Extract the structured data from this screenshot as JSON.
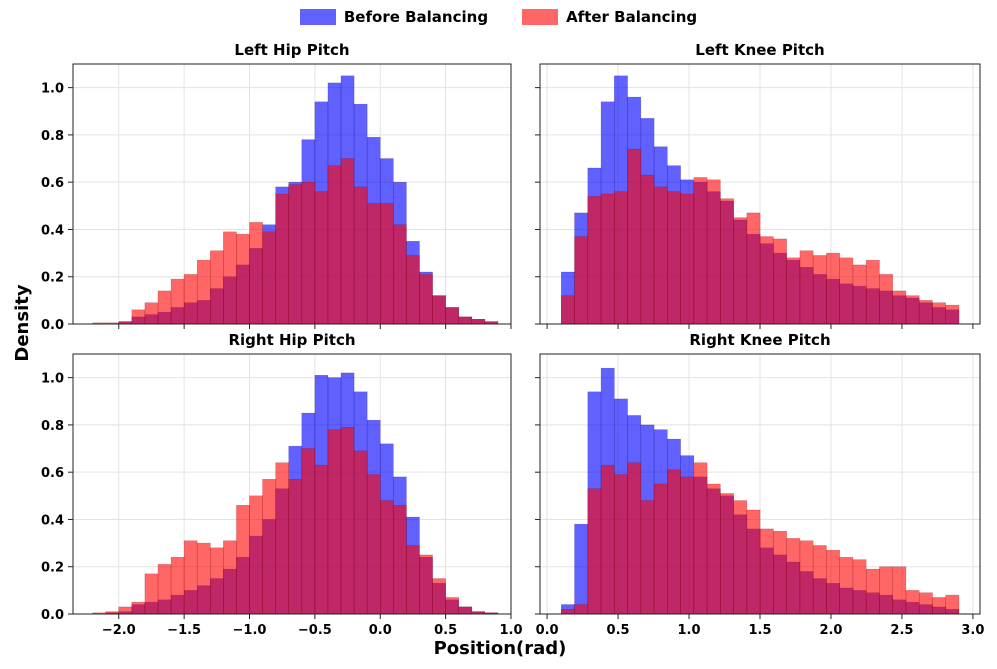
{
  "legend": {
    "before": "Before Balancing",
    "after": "After Balancing"
  },
  "figure": {
    "ylabel": "Density",
    "xlabel": "Position(rad)"
  },
  "colors": {
    "before": "#0000ff",
    "after": "#ff0000",
    "overlap": "#b00046"
  },
  "chart_data": [
    {
      "type": "bar",
      "title": "Left Hip Pitch",
      "xlim": [
        -2.35,
        1.0
      ],
      "ylim": [
        0,
        1.1
      ],
      "xticks": [
        -2.0,
        -1.5,
        -1.0,
        -0.5,
        0.0,
        0.5,
        1.0
      ],
      "yticks": [
        0.0,
        0.2,
        0.4,
        0.6,
        0.8,
        1.0
      ],
      "xtick_labels": [],
      "ytick_labels": [
        "0.0",
        "0.2",
        "0.4",
        "0.6",
        "0.8",
        "1.0"
      ],
      "bin_start": -2.2,
      "bin_width": 0.1,
      "series": [
        {
          "name": "Before Balancing",
          "values": [
            0,
            0,
            0.01,
            0.03,
            0.04,
            0.05,
            0.07,
            0.09,
            0.1,
            0.15,
            0.2,
            0.25,
            0.32,
            0.42,
            0.58,
            0.6,
            0.78,
            0.94,
            1.02,
            1.05,
            0.93,
            0.79,
            0.7,
            0.6,
            0.35,
            0.22,
            0.12,
            0.07,
            0.03,
            0.02,
            0.01
          ]
        },
        {
          "name": "After Balancing",
          "values": [
            0.005,
            0.005,
            0.01,
            0.06,
            0.09,
            0.14,
            0.19,
            0.21,
            0.27,
            0.31,
            0.39,
            0.38,
            0.43,
            0.39,
            0.55,
            0.59,
            0.6,
            0.56,
            0.67,
            0.7,
            0.58,
            0.51,
            0.51,
            0.42,
            0.29,
            0.21,
            0.12,
            0.07,
            0.03,
            0.02,
            0.01
          ]
        }
      ]
    },
    {
      "type": "bar",
      "title": "Left Knee Pitch",
      "xlim": [
        -0.05,
        3.05
      ],
      "ylim": [
        0,
        1.1
      ],
      "xticks": [
        0.0,
        0.5,
        1.0,
        1.5,
        2.0,
        2.5,
        3.0
      ],
      "yticks": [
        0.0,
        0.2,
        0.4,
        0.6,
        0.8,
        1.0
      ],
      "xtick_labels": [],
      "ytick_labels": [],
      "bin_start": 0.1,
      "bin_width": 0.0934,
      "series": [
        {
          "name": "Before Balancing",
          "values": [
            0.22,
            0.47,
            0.66,
            0.94,
            1.05,
            0.96,
            0.87,
            0.75,
            0.67,
            0.61,
            0.6,
            0.56,
            0.52,
            0.44,
            0.38,
            0.34,
            0.3,
            0.27,
            0.24,
            0.21,
            0.19,
            0.17,
            0.16,
            0.15,
            0.14,
            0.12,
            0.11,
            0.09,
            0.07,
            0.06
          ]
        },
        {
          "name": "After Balancing",
          "values": [
            0.12,
            0.37,
            0.54,
            0.55,
            0.56,
            0.74,
            0.63,
            0.58,
            0.56,
            0.55,
            0.62,
            0.61,
            0.53,
            0.45,
            0.47,
            0.37,
            0.36,
            0.28,
            0.31,
            0.29,
            0.3,
            0.28,
            0.25,
            0.27,
            0.21,
            0.14,
            0.12,
            0.1,
            0.09,
            0.08
          ]
        }
      ]
    },
    {
      "type": "bar",
      "title": "Right Hip Pitch",
      "xlim": [
        -2.35,
        1.0
      ],
      "ylim": [
        0,
        1.1
      ],
      "xticks": [
        -2.0,
        -1.5,
        -1.0,
        -0.5,
        0.0,
        0.5,
        1.0
      ],
      "yticks": [
        0.0,
        0.2,
        0.4,
        0.6,
        0.8,
        1.0
      ],
      "xtick_labels": [
        "−2.0",
        "−1.5",
        "−1.0",
        "−0.5",
        "0.0",
        "0.5",
        "1.0"
      ],
      "ytick_labels": [
        "0.0",
        "0.2",
        "0.4",
        "0.6",
        "0.8",
        "1.0"
      ],
      "bin_start": -2.2,
      "bin_width": 0.1,
      "series": [
        {
          "name": "Before Balancing",
          "values": [
            0,
            0.005,
            0.01,
            0.04,
            0.05,
            0.06,
            0.08,
            0.1,
            0.12,
            0.15,
            0.19,
            0.24,
            0.33,
            0.4,
            0.53,
            0.71,
            0.85,
            1.01,
            1.0,
            1.02,
            0.94,
            0.82,
            0.72,
            0.58,
            0.41,
            0.24,
            0.13,
            0.06,
            0.03,
            0.01,
            0.005
          ]
        },
        {
          "name": "After Balancing",
          "values": [
            0.005,
            0.01,
            0.03,
            0.05,
            0.17,
            0.21,
            0.24,
            0.31,
            0.3,
            0.28,
            0.31,
            0.46,
            0.5,
            0.57,
            0.64,
            0.57,
            0.7,
            0.63,
            0.78,
            0.79,
            0.69,
            0.59,
            0.48,
            0.46,
            0.29,
            0.25,
            0.15,
            0.07,
            0.03,
            0.01,
            0.005
          ]
        }
      ]
    },
    {
      "type": "bar",
      "title": "Right Knee Pitch",
      "xlim": [
        -0.05,
        3.05
      ],
      "ylim": [
        0,
        1.1
      ],
      "xticks": [
        0.0,
        0.5,
        1.0,
        1.5,
        2.0,
        2.5,
        3.0
      ],
      "yticks": [
        0.0,
        0.2,
        0.4,
        0.6,
        0.8,
        1.0
      ],
      "xtick_labels": [
        "0.0",
        "0.5",
        "1.0",
        "1.5",
        "2.0",
        "2.5",
        "3.0"
      ],
      "ytick_labels": [],
      "bin_start": 0.1,
      "bin_width": 0.0934,
      "series": [
        {
          "name": "Before Balancing",
          "values": [
            0.04,
            0.38,
            0.94,
            1.04,
            0.91,
            0.84,
            0.8,
            0.78,
            0.74,
            0.67,
            0.58,
            0.53,
            0.5,
            0.42,
            0.36,
            0.28,
            0.25,
            0.22,
            0.18,
            0.15,
            0.13,
            0.11,
            0.1,
            0.09,
            0.08,
            0.06,
            0.05,
            0.04,
            0.03,
            0.02
          ]
        },
        {
          "name": "After Balancing",
          "values": [
            0.02,
            0.04,
            0.53,
            0.63,
            0.59,
            0.64,
            0.48,
            0.55,
            0.61,
            0.58,
            0.64,
            0.55,
            0.51,
            0.48,
            0.44,
            0.36,
            0.35,
            0.32,
            0.31,
            0.29,
            0.27,
            0.24,
            0.23,
            0.19,
            0.2,
            0.2,
            0.1,
            0.09,
            0.07,
            0.08
          ]
        }
      ]
    }
  ]
}
